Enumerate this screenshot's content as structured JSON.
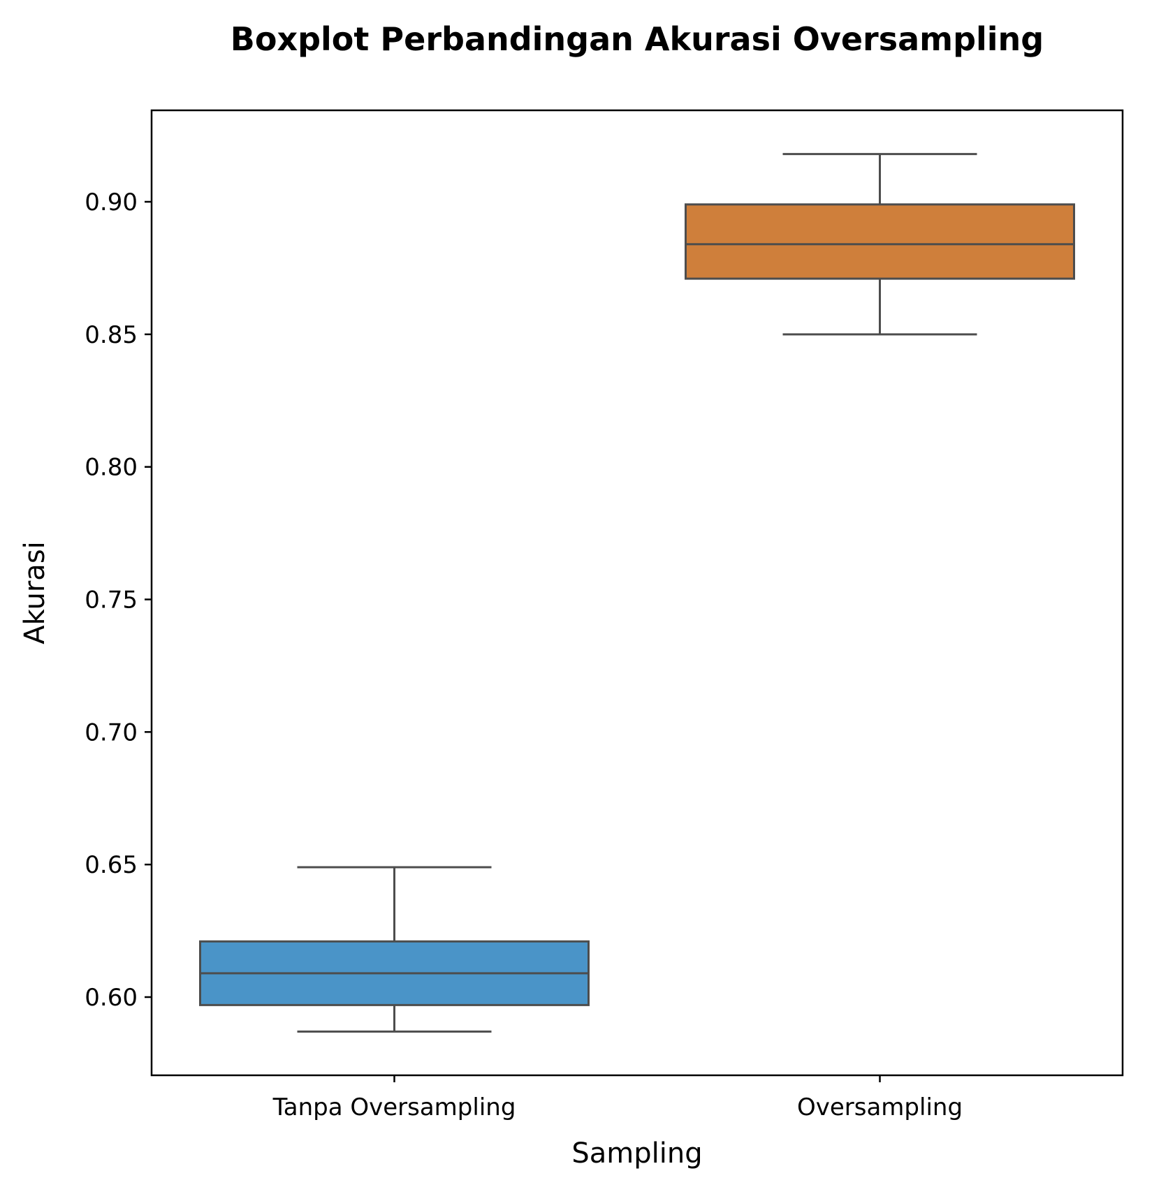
{
  "chart_data": {
    "type": "box",
    "title": "Boxplot Perbandingan Akurasi Oversampling",
    "xlabel": "Sampling",
    "ylabel": "Akurasi",
    "categories": [
      "Tanpa Oversampling",
      "Oversampling"
    ],
    "ylim": [
      0.5705,
      0.9345
    ],
    "yticks": [
      0.6,
      0.65,
      0.7,
      0.75,
      0.8,
      0.85,
      0.9
    ],
    "ytick_labels": [
      "0.60",
      "0.65",
      "0.70",
      "0.75",
      "0.80",
      "0.85",
      "0.90"
    ],
    "grid": false,
    "series": [
      {
        "category": "Tanpa Oversampling",
        "whisker_low": 0.587,
        "q1": 0.597,
        "median": 0.609,
        "q3": 0.621,
        "whisker_high": 0.649,
        "color": "#4a94c8"
      },
      {
        "category": "Oversampling",
        "whisker_low": 0.85,
        "q1": 0.871,
        "median": 0.884,
        "q3": 0.899,
        "whisker_high": 0.918,
        "color": "#cf7f3b"
      }
    ],
    "line_color": "#4d4d4d"
  }
}
